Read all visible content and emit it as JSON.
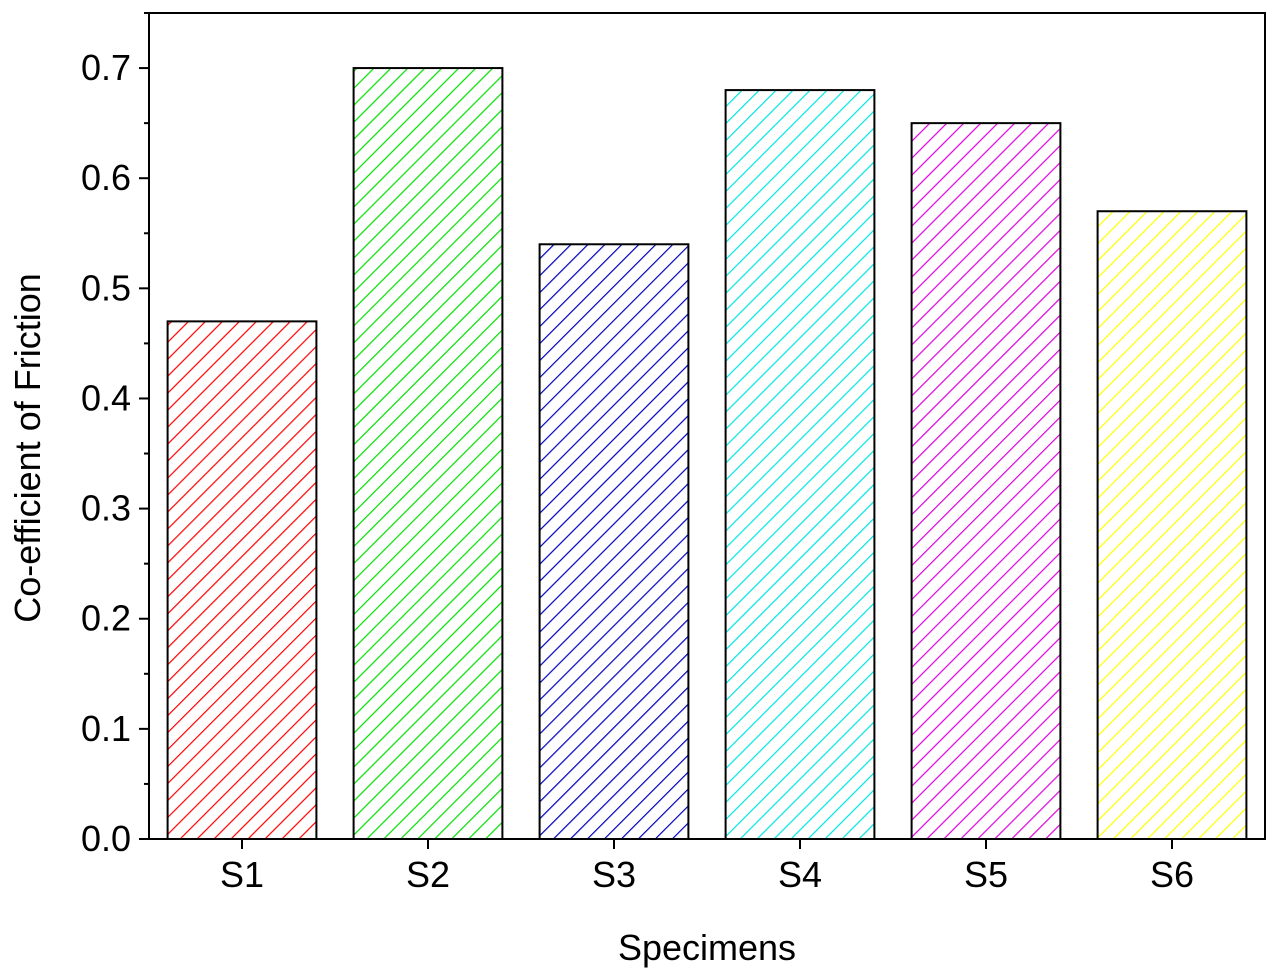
{
  "chart_data": {
    "type": "bar",
    "title": "",
    "xlabel": "Specimens",
    "ylabel": "Co-efficient of Friction",
    "categories": [
      "S1",
      "S2",
      "S3",
      "S4",
      "S5",
      "S6"
    ],
    "values": [
      0.47,
      0.7,
      0.54,
      0.68,
      0.65,
      0.57
    ],
    "colors": [
      "#ff0000",
      "#00e000",
      "#0000c0",
      "#00e5e5",
      "#e000e0",
      "#ffff00"
    ],
    "fill": "diagonal-hatch",
    "ylim": [
      0,
      0.75
    ],
    "yticks": [
      "0.0",
      "0.1",
      "0.2",
      "0.3",
      "0.4",
      "0.5",
      "0.6",
      "0.7"
    ],
    "grid": false,
    "legend": "none"
  }
}
